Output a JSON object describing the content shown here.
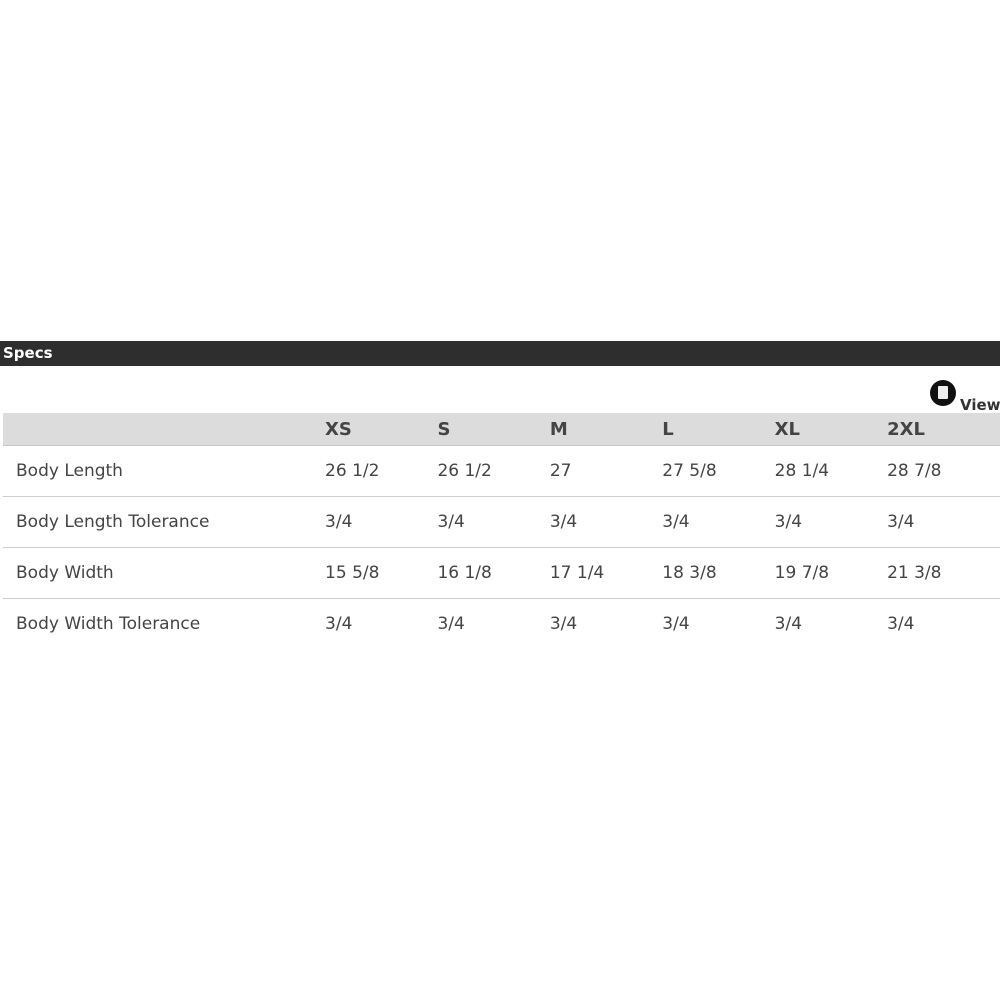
{
  "section_title": "Specs",
  "view_link": {
    "label": "View",
    "icon": "pdf-icon"
  },
  "columns": [
    "",
    "XS",
    "S",
    "M",
    "L",
    "XL",
    "2XL"
  ],
  "rows": [
    {
      "label": "Body Length",
      "values": [
        "26 1/2",
        "26 1/2",
        "27",
        "27 5/8",
        "28 1/4",
        "28 7/8"
      ]
    },
    {
      "label": "Body Length Tolerance",
      "values": [
        "3/4",
        "3/4",
        "3/4",
        "3/4",
        "3/4",
        "3/4"
      ]
    },
    {
      "label": "Body Width",
      "values": [
        "15 5/8",
        "16 1/8",
        "17 1/4",
        "18 3/8",
        "19 7/8",
        "21 3/8"
      ]
    },
    {
      "label": "Body Width Tolerance",
      "values": [
        "3/4",
        "3/4",
        "3/4",
        "3/4",
        "3/4",
        "3/4"
      ]
    }
  ]
}
